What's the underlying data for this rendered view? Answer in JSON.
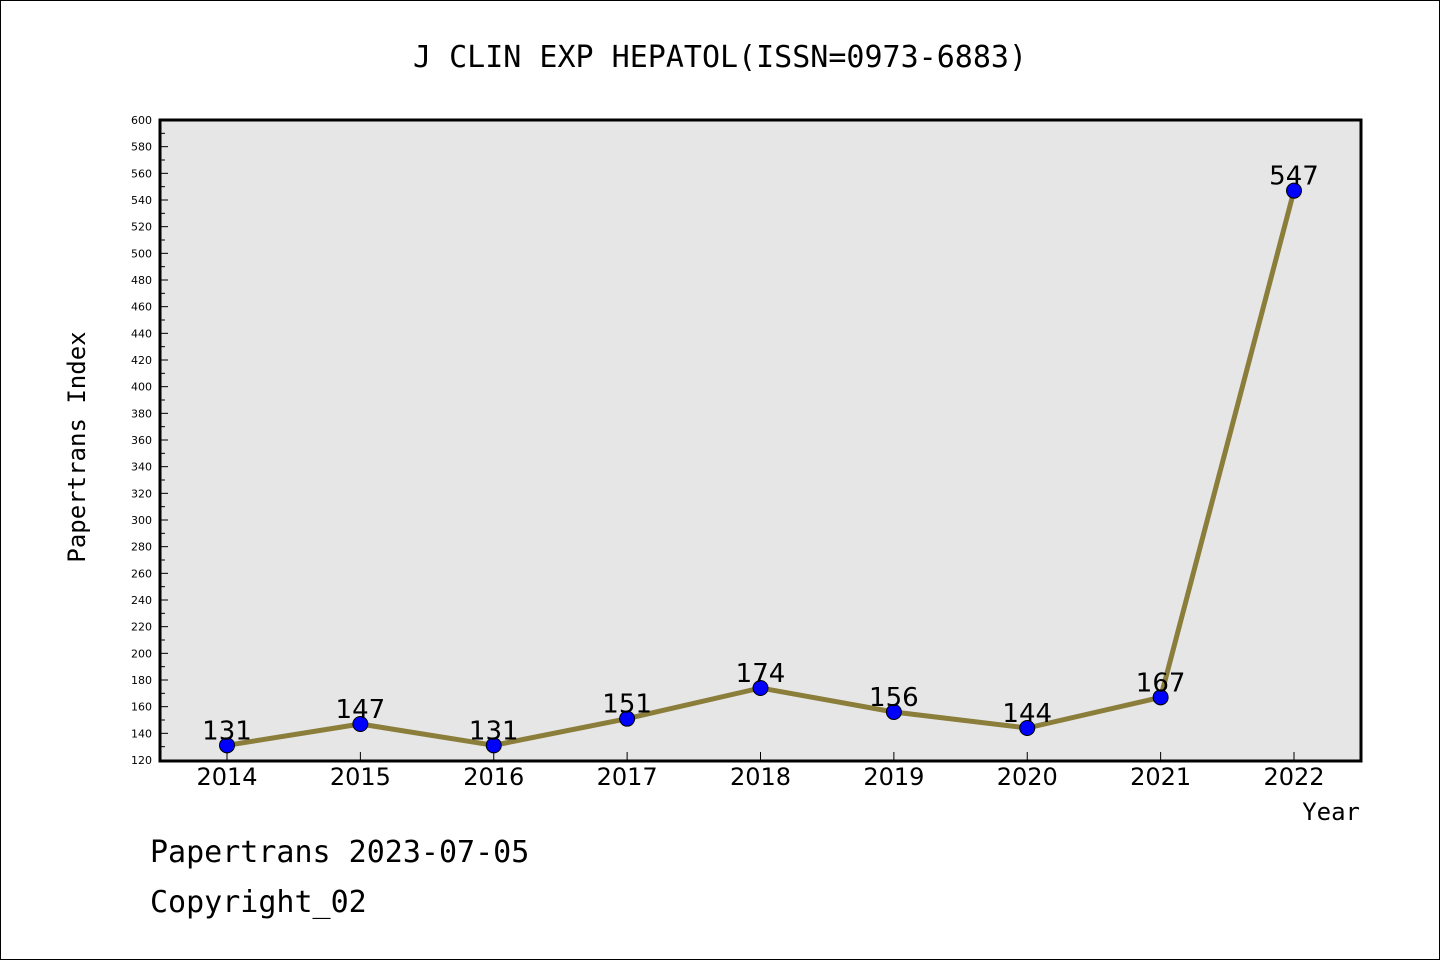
{
  "chart_data": {
    "type": "line",
    "title": "J CLIN EXP HEPATOL(ISSN=0973-6883)",
    "xlabel": "Year",
    "ylabel": "Papertrans Index",
    "categories": [
      "2014",
      "2015",
      "2016",
      "2017",
      "2018",
      "2019",
      "2020",
      "2021",
      "2022"
    ],
    "values": [
      131,
      147,
      131,
      151,
      174,
      156,
      144,
      167,
      547
    ],
    "ylim": [
      120,
      600
    ],
    "ytick_step": 20,
    "grid": false,
    "colors": {
      "line": "#8b7d3a",
      "marker": "#0000ff",
      "plot_bg": "#e6e6e6"
    }
  },
  "footer": {
    "line1": "Papertrans 2023-07-05",
    "line2": "Copyright_02"
  }
}
